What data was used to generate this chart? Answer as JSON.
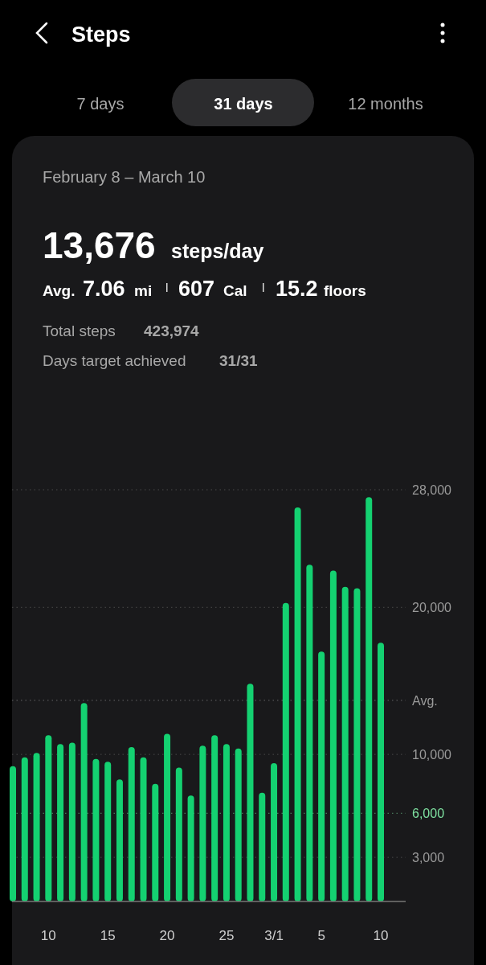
{
  "chart_data": {
    "type": "bar",
    "title": "Steps",
    "subtitle": "February 8 – March 10",
    "annotations": [
      "7 days",
      "31 days",
      "12 months",
      "13,676",
      "steps/day",
      "Avg.",
      "7.06",
      "mi",
      "607",
      "Cal",
      "15.2",
      "floors",
      "Total steps",
      "423,974",
      "Days target achieved",
      "31/31"
    ],
    "categories": [
      null,
      null,
      null,
      "10",
      null,
      null,
      null,
      null,
      "15",
      null,
      null,
      null,
      null,
      "20",
      null,
      null,
      null,
      null,
      "25",
      null,
      null,
      null,
      "3/1",
      null,
      null,
      null,
      "5",
      null,
      null,
      null,
      null,
      "10"
    ],
    "values": [
      9200,
      9800,
      10100,
      11300,
      10700,
      10800,
      13500,
      9700,
      9500,
      8300,
      10500,
      9800,
      8000,
      11400,
      9100,
      7200,
      10600,
      11300,
      10700,
      10400,
      14800,
      7400,
      9400,
      20300,
      26800,
      22900,
      17000,
      22500,
      21400,
      21300,
      27500,
      17600
    ],
    "color": "#14d171",
    "ylim": [
      0,
      28000
    ],
    "yticks": [
      {
        "value": 3000,
        "label": "3,000"
      },
      {
        "value": 10000,
        "label": "10,000"
      },
      {
        "value": 20000,
        "label": "20,000"
      },
      {
        "value": 28000,
        "label": "28,000"
      }
    ],
    "ref_lines": [
      {
        "axis": "y",
        "value": 6000,
        "label": "6,000",
        "color": "#7ee0a0"
      },
      {
        "axis": "y",
        "value": 13676,
        "label": "Avg.",
        "color": "#9a9a9a"
      }
    ],
    "grid": "y"
  }
}
